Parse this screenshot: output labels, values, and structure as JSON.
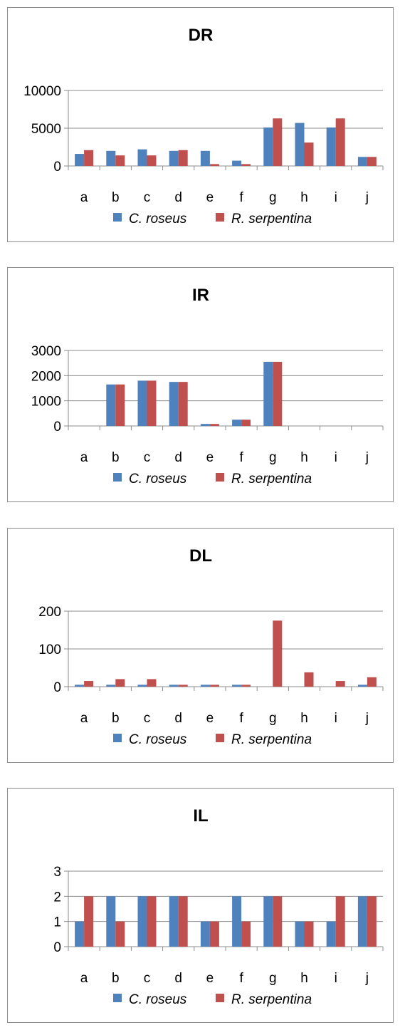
{
  "chart_data": [
    {
      "type": "bar",
      "title": "DR",
      "categories": [
        "a",
        "b",
        "c",
        "d",
        "e",
        "f",
        "g",
        "h",
        "i",
        "j"
      ],
      "ylim": [
        0,
        10000
      ],
      "yticks": [
        0,
        5000,
        10000
      ],
      "grid": true,
      "legend_position": "bottom",
      "series": [
        {
          "name": "C. roseus",
          "color": "#4f81bd",
          "values": [
            1600,
            2000,
            2200,
            2000,
            2000,
            700,
            5100,
            5700,
            5100,
            1200
          ]
        },
        {
          "name": "R. serpentina",
          "color": "#c0504d",
          "values": [
            2100,
            1400,
            1400,
            2100,
            250,
            250,
            6300,
            3100,
            6300,
            1200
          ]
        }
      ]
    },
    {
      "type": "bar",
      "title": "IR",
      "categories": [
        "a",
        "b",
        "c",
        "d",
        "e",
        "f",
        "g",
        "h",
        "i",
        "j"
      ],
      "ylim": [
        0,
        3000
      ],
      "yticks": [
        0,
        1000,
        2000,
        3000
      ],
      "grid": true,
      "legend_position": "bottom",
      "series": [
        {
          "name": "C. roseus",
          "color": "#4f81bd",
          "values": [
            0,
            1650,
            1800,
            1750,
            80,
            250,
            2550,
            0,
            0,
            0
          ]
        },
        {
          "name": "R. serpentina",
          "color": "#c0504d",
          "values": [
            0,
            1650,
            1800,
            1750,
            80,
            250,
            2550,
            0,
            0,
            0
          ]
        }
      ]
    },
    {
      "type": "bar",
      "title": "DL",
      "categories": [
        "a",
        "b",
        "c",
        "d",
        "e",
        "f",
        "g",
        "h",
        "i",
        "j"
      ],
      "ylim": [
        0,
        200
      ],
      "yticks": [
        0,
        100,
        200
      ],
      "grid": true,
      "legend_position": "bottom",
      "series": [
        {
          "name": "C. roseus",
          "color": "#4f81bd",
          "values": [
            5,
            5,
            5,
            5,
            5,
            5,
            0,
            0,
            0,
            5
          ]
        },
        {
          "name": "R. serpentina",
          "color": "#c0504d",
          "values": [
            15,
            20,
            20,
            5,
            5,
            5,
            175,
            38,
            15,
            25
          ]
        }
      ]
    },
    {
      "type": "bar",
      "title": "IL",
      "categories": [
        "a",
        "b",
        "c",
        "d",
        "e",
        "f",
        "g",
        "h",
        "i",
        "j"
      ],
      "ylim": [
        0,
        3
      ],
      "yticks": [
        0,
        1,
        2,
        3
      ],
      "grid": true,
      "legend_position": "bottom",
      "series": [
        {
          "name": "C. roseus",
          "color": "#4f81bd",
          "values": [
            1,
            2,
            2,
            2,
            1,
            2,
            2,
            1,
            1,
            2
          ]
        },
        {
          "name": "R. serpentina",
          "color": "#c0504d",
          "values": [
            2,
            1,
            2,
            2,
            1,
            1,
            2,
            1,
            2,
            2
          ]
        }
      ]
    }
  ]
}
